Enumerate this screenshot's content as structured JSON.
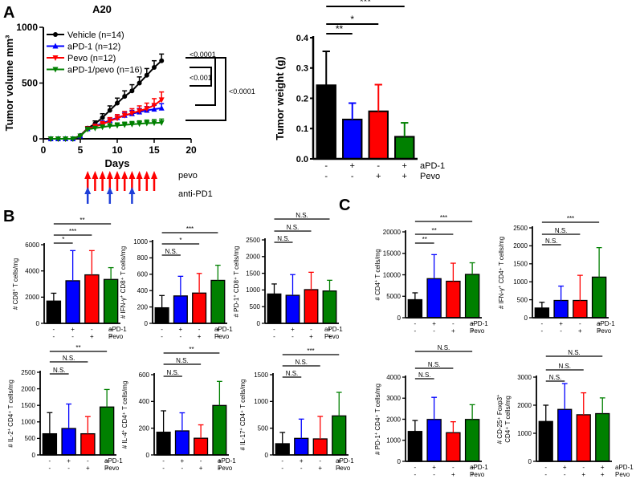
{
  "panel_labels": {
    "A": "A",
    "B": "B",
    "C": "C"
  },
  "colors": {
    "black": "#000000",
    "blue": "#0000ff",
    "red": "#ff0000",
    "green": "#008000",
    "red_arrow": "#ff0000",
    "blue_arrow": "#1f3fd8"
  },
  "chart_data": [
    {
      "id": "growth",
      "type": "line",
      "title": "A20",
      "xlabel": "Days",
      "ylabel": "Tumor volume mm³",
      "xlim": [
        0,
        20
      ],
      "ylim": [
        0,
        1000
      ],
      "xticks": [
        0,
        5,
        10,
        15,
        20
      ],
      "yticks": [
        0,
        500,
        1000
      ],
      "x": [
        1,
        2,
        3,
        4,
        5,
        6,
        7,
        8,
        9,
        10,
        11,
        12,
        13,
        14,
        15,
        16
      ],
      "series": [
        {
          "name": "Vehicle (n=14)",
          "color": "#000000",
          "marker": "circle",
          "values": [
            0,
            0,
            0,
            0,
            30,
            95,
            135,
            190,
            255,
            320,
            380,
            430,
            500,
            570,
            640,
            700
          ],
          "errors": [
            0,
            0,
            0,
            0,
            8,
            15,
            25,
            35,
            40,
            45,
            50,
            55,
            55,
            60,
            60,
            60
          ]
        },
        {
          "name": "aPD-1 (n=12)",
          "color": "#0000ff",
          "marker": "triangle-up",
          "values": [
            0,
            0,
            0,
            0,
            25,
            90,
            115,
            140,
            165,
            190,
            210,
            225,
            240,
            255,
            265,
            275
          ],
          "errors": [
            0,
            0,
            0,
            0,
            6,
            12,
            16,
            20,
            22,
            25,
            28,
            30,
            32,
            34,
            36,
            40
          ]
        },
        {
          "name": "Pevo (n=12)",
          "color": "#ff0000",
          "marker": "triangle-down",
          "values": [
            0,
            0,
            0,
            0,
            25,
            90,
            110,
            130,
            160,
            185,
            210,
            230,
            250,
            270,
            300,
            350
          ],
          "errors": [
            0,
            0,
            0,
            0,
            6,
            14,
            20,
            25,
            30,
            32,
            35,
            40,
            45,
            50,
            60,
            70
          ]
        },
        {
          "name": "aPD-1/pevo (n=16)",
          "color": "#008000",
          "marker": "triangle-down",
          "values": [
            0,
            0,
            0,
            0,
            25,
            85,
            95,
            105,
            115,
            120,
            125,
            130,
            135,
            140,
            142,
            145
          ],
          "errors": [
            0,
            0,
            0,
            0,
            5,
            10,
            14,
            18,
            20,
            22,
            24,
            25,
            26,
            28,
            30,
            32
          ]
        }
      ],
      "significance": [
        "<0.0001",
        "<0.001",
        "<0.0001"
      ],
      "treatment_labels": {
        "pevo": "pevo",
        "antipd1": "anti-PD1"
      },
      "pevo_dose_days": [
        6,
        7,
        8,
        9,
        10,
        11,
        12,
        13,
        14,
        15
      ],
      "antipd1_dose_days": [
        6,
        9,
        12
      ]
    },
    {
      "id": "weight",
      "type": "bar",
      "ylabel": "Tumor weight (g)",
      "ylim": [
        0,
        0.4
      ],
      "yticks": [
        0,
        0.1,
        0.2,
        0.3,
        0.4
      ],
      "ytick_labels": [
        "0.0",
        "0.1",
        "0.2",
        "0.3",
        "0.4"
      ],
      "values": [
        0.243,
        0.13,
        0.157,
        0.073
      ],
      "errors": [
        0.112,
        0.054,
        0.088,
        0.046
      ],
      "colors": [
        "#000000",
        "#0000ff",
        "#ff0000",
        "#008000"
      ],
      "row1": [
        "-",
        "+",
        "-",
        "+"
      ],
      "row1_label": "aPD-1",
      "row2": [
        "-",
        "-",
        "+",
        "+"
      ],
      "row2_label": "Pevo",
      "significance": [
        {
          "from": 0,
          "to": 1,
          "label": "**"
        },
        {
          "from": 0,
          "to": 2,
          "label": "*"
        },
        {
          "from": 0,
          "to": 3,
          "label": "***"
        }
      ]
    },
    {
      "id": "cd8",
      "type": "bar",
      "ylabel_pre": "# CD8",
      "ylabel_sup": "+",
      "ylabel_post": " T cells/mg",
      "ylim": [
        0,
        6000
      ],
      "yticks": [
        0,
        2000,
        4000,
        6000
      ],
      "ytick_labels": [
        "0",
        "2000",
        "4000",
        "6000"
      ],
      "values": [
        1700,
        3250,
        3700,
        3350
      ],
      "errors": [
        600,
        2300,
        1850,
        900
      ],
      "colors": [
        "#000000",
        "#0000ff",
        "#ff0000",
        "#008000"
      ],
      "row1": [
        "-",
        "+",
        "-",
        "+"
      ],
      "row1_label": "aPD-1",
      "row2": [
        "-",
        "-",
        "+",
        "+"
      ],
      "row2_label": "Pevo",
      "significance": [
        {
          "from": 0,
          "to": 1,
          "label": "*"
        },
        {
          "from": 0,
          "to": 2,
          "label": "***"
        },
        {
          "from": 0,
          "to": 3,
          "label": "**"
        }
      ]
    },
    {
      "id": "ifng_cd8",
      "type": "bar",
      "ylabel_pre": "# IFN-γ",
      "ylabel_sup": "+",
      "ylabel_post": " CD8⁺ T cells/mg",
      "ylim": [
        0,
        1000
      ],
      "yticks": [
        0,
        200,
        400,
        600,
        800,
        1000
      ],
      "ytick_labels": [
        "0",
        "200",
        "400",
        "600",
        "800",
        "1000"
      ],
      "values": [
        190,
        335,
        370,
        525
      ],
      "errors": [
        150,
        240,
        240,
        185
      ],
      "colors": [
        "#000000",
        "#0000ff",
        "#ff0000",
        "#008000"
      ],
      "row1": [
        "-",
        "+",
        "-",
        "+"
      ],
      "row1_label": "aPD-1",
      "row2": [
        "-",
        "-",
        "+",
        "+"
      ],
      "row2_label": "Pevo",
      "significance": [
        {
          "from": 0,
          "to": 1,
          "label": "N.S."
        },
        {
          "from": 0,
          "to": 2,
          "label": "*"
        },
        {
          "from": 0,
          "to": 3,
          "label": "***"
        }
      ]
    },
    {
      "id": "pd1_cd8",
      "type": "bar",
      "ylabel_pre": "# PD-1",
      "ylabel_sup": "+",
      "ylabel_post": " CD8⁺ T cells/mg",
      "ylim": [
        0,
        2500
      ],
      "yticks": [
        0,
        500,
        1000,
        1500,
        2000,
        2500
      ],
      "ytick_labels": [
        "0",
        "500",
        "1000",
        "1500",
        "2000",
        "2500"
      ],
      "values": [
        880,
        840,
        1010,
        970
      ],
      "errors": [
        300,
        620,
        520,
        320
      ],
      "colors": [
        "#000000",
        "#0000ff",
        "#ff0000",
        "#008000"
      ],
      "row1": [
        "-",
        "+",
        "-",
        "+"
      ],
      "row1_label": "aPD-1",
      "row2": [
        "-",
        "-",
        "+",
        "+"
      ],
      "row2_label": "Pevo",
      "significance": [
        {
          "from": 0,
          "to": 1,
          "label": "N.S."
        },
        {
          "from": 0,
          "to": 2,
          "label": "N.S."
        },
        {
          "from": 0,
          "to": 3,
          "label": "N.S."
        }
      ]
    },
    {
      "id": "il2_cd4",
      "type": "bar",
      "ylabel_pre": "# IL-2",
      "ylabel_sup": "+",
      "ylabel_post": " CD4⁺ T cells/mg",
      "ylim": [
        0,
        2500
      ],
      "yticks": [
        0,
        500,
        1000,
        1500,
        2000,
        2500
      ],
      "ytick_labels": [
        "0",
        "500",
        "1000",
        "1500",
        "2000",
        "2500"
      ],
      "values": [
        640,
        800,
        640,
        1450
      ],
      "errors": [
        640,
        740,
        520,
        530
      ],
      "colors": [
        "#000000",
        "#0000ff",
        "#ff0000",
        "#008000"
      ],
      "row1": [
        "-",
        "+",
        "-",
        "+"
      ],
      "row1_label": "aPD-1",
      "row2": [
        "-",
        "-",
        "+",
        "+"
      ],
      "row2_label": "Pevo",
      "significance": [
        {
          "from": 0,
          "to": 1,
          "label": "N.S."
        },
        {
          "from": 0,
          "to": 2,
          "label": "N.S."
        },
        {
          "from": 0,
          "to": 3,
          "label": "**"
        }
      ]
    },
    {
      "id": "il4_cd4",
      "type": "bar",
      "ylabel_pre": "# IL-4",
      "ylabel_sup": "+",
      "ylabel_post": " CD4⁺ T cells/mg",
      "ylim": [
        0,
        600
      ],
      "yticks": [
        0,
        200,
        400,
        600
      ],
      "ytick_labels": [
        "0",
        "200",
        "400",
        "600"
      ],
      "values": [
        170,
        180,
        125,
        370
      ],
      "errors": [
        160,
        135,
        100,
        180
      ],
      "colors": [
        "#000000",
        "#0000ff",
        "#ff0000",
        "#008000"
      ],
      "row1": [
        "-",
        "+",
        "-",
        "+"
      ],
      "row1_label": "aPD-1",
      "row2": [
        "-",
        "-",
        "+",
        "+"
      ],
      "row2_label": "Pevo",
      "significance": [
        {
          "from": 0,
          "to": 1,
          "label": "N.S."
        },
        {
          "from": 0,
          "to": 2,
          "label": "N.S."
        },
        {
          "from": 0,
          "to": 3,
          "label": "**"
        }
      ]
    },
    {
      "id": "il17_cd4",
      "type": "bar",
      "ylabel_pre": "# IL-17",
      "ylabel_sup": "+",
      "ylabel_post": " CD4⁺ T cells/mg",
      "ylim": [
        0,
        1500
      ],
      "yticks": [
        0,
        500,
        1000,
        1500
      ],
      "ytick_labels": [
        "0",
        "500",
        "1000",
        "1500"
      ],
      "values": [
        210,
        310,
        300,
        730
      ],
      "errors": [
        210,
        360,
        420,
        440
      ],
      "colors": [
        "#000000",
        "#0000ff",
        "#ff0000",
        "#008000"
      ],
      "row1": [
        "-",
        "+",
        "-",
        "+"
      ],
      "row1_label": "aPD-1",
      "row2": [
        "-",
        "-",
        "+",
        "+"
      ],
      "row2_label": "Pevo",
      "significance": [
        {
          "from": 0,
          "to": 1,
          "label": "N.S."
        },
        {
          "from": 0,
          "to": 2,
          "label": "N.S."
        },
        {
          "from": 0,
          "to": 3,
          "label": "***"
        }
      ]
    },
    {
      "id": "cd4",
      "type": "bar",
      "ylabel_pre": "# CD4",
      "ylabel_sup": "+",
      "ylabel_post": " T cells/mg",
      "ylim": [
        0,
        20000
      ],
      "yticks": [
        0,
        5000,
        10000,
        15000,
        20000
      ],
      "ytick_labels": [
        "0",
        "5000",
        "10000",
        "15000",
        "20000"
      ],
      "values": [
        4200,
        9100,
        8500,
        10100
      ],
      "errors": [
        1600,
        5600,
        4200,
        2700
      ],
      "colors": [
        "#000000",
        "#0000ff",
        "#ff0000",
        "#008000"
      ],
      "row1": [
        "-",
        "+",
        "-",
        "+"
      ],
      "row1_label": "aPD-1",
      "row2": [
        "-",
        "-",
        "+",
        "+"
      ],
      "row2_label": "Pevo",
      "significance": [
        {
          "from": 0,
          "to": 1,
          "label": "**"
        },
        {
          "from": 0,
          "to": 2,
          "label": "**"
        },
        {
          "from": 0,
          "to": 3,
          "label": "***"
        }
      ]
    },
    {
      "id": "ifng_cd4",
      "type": "bar",
      "ylabel_pre": "# IFN-γ",
      "ylabel_sup": "+",
      "ylabel_post": " CD4⁺ T cells/mg",
      "ylim": [
        0,
        2500
      ],
      "yticks": [
        0,
        500,
        1000,
        1500,
        2000,
        2500
      ],
      "ytick_labels": [
        "0",
        "500",
        "1000",
        "1500",
        "2000",
        "2500"
      ],
      "values": [
        270,
        480,
        480,
        1130
      ],
      "errors": [
        160,
        400,
        700,
        820
      ],
      "colors": [
        "#000000",
        "#0000ff",
        "#ff0000",
        "#008000"
      ],
      "row1": [
        "-",
        "+",
        "-",
        "+"
      ],
      "row1_label": "aPD-1",
      "row2": [
        "-",
        "-",
        "+",
        "+"
      ],
      "row2_label": "Pevo",
      "significance": [
        {
          "from": 0,
          "to": 1,
          "label": "N.S."
        },
        {
          "from": 0,
          "to": 2,
          "label": "N.S."
        },
        {
          "from": 0,
          "to": 3,
          "label": "***"
        }
      ]
    },
    {
      "id": "pd1_cd4",
      "type": "bar",
      "ylabel_pre": "# PD-1",
      "ylabel_sup": "+",
      "ylabel_post": " CD4⁺ T cells/mg",
      "ylim": [
        0,
        4000
      ],
      "yticks": [
        0,
        1000,
        2000,
        3000,
        4000
      ],
      "ytick_labels": [
        "0",
        "1000",
        "2000",
        "3000",
        "4000"
      ],
      "values": [
        1420,
        1990,
        1360,
        1990
      ],
      "errors": [
        520,
        1050,
        520,
        700
      ],
      "colors": [
        "#000000",
        "#0000ff",
        "#ff0000",
        "#008000"
      ],
      "row1": [
        "-",
        "+",
        "-",
        "+"
      ],
      "row1_label": "aPD-1",
      "row2": [
        "-",
        "-",
        "+",
        "+"
      ],
      "row2_label": "Pevo",
      "significance": [
        {
          "from": 0,
          "to": 1,
          "label": "N.S."
        },
        {
          "from": 0,
          "to": 2,
          "label": "N.S."
        },
        {
          "from": 0,
          "to": 3,
          "label": "N.S."
        }
      ]
    },
    {
      "id": "treg",
      "type": "bar",
      "ylabel_pre": "# CD-25⁺ Foxp3",
      "ylabel_sup": "+",
      "ylabel_post": "",
      "ylabel2": "CD4⁺ T cells/mg",
      "ylim": [
        0,
        3000
      ],
      "yticks": [
        0,
        1000,
        2000,
        3000
      ],
      "ytick_labels": [
        "0",
        "1000",
        "2000",
        "3000"
      ],
      "values": [
        1420,
        1850,
        1660,
        1700
      ],
      "errors": [
        580,
        920,
        780,
        560
      ],
      "colors": [
        "#000000",
        "#0000ff",
        "#ff0000",
        "#008000"
      ],
      "row1": [
        "-",
        "+",
        "-",
        "+"
      ],
      "row1_label": "aPD-1",
      "row2": [
        "-",
        "-",
        "+",
        "+"
      ],
      "row2_label": "Pevo",
      "significance": [
        {
          "from": 0,
          "to": 1,
          "label": "N.S."
        },
        {
          "from": 0,
          "to": 2,
          "label": "N.S."
        },
        {
          "from": 0,
          "to": 3,
          "label": "N.S."
        }
      ]
    }
  ]
}
